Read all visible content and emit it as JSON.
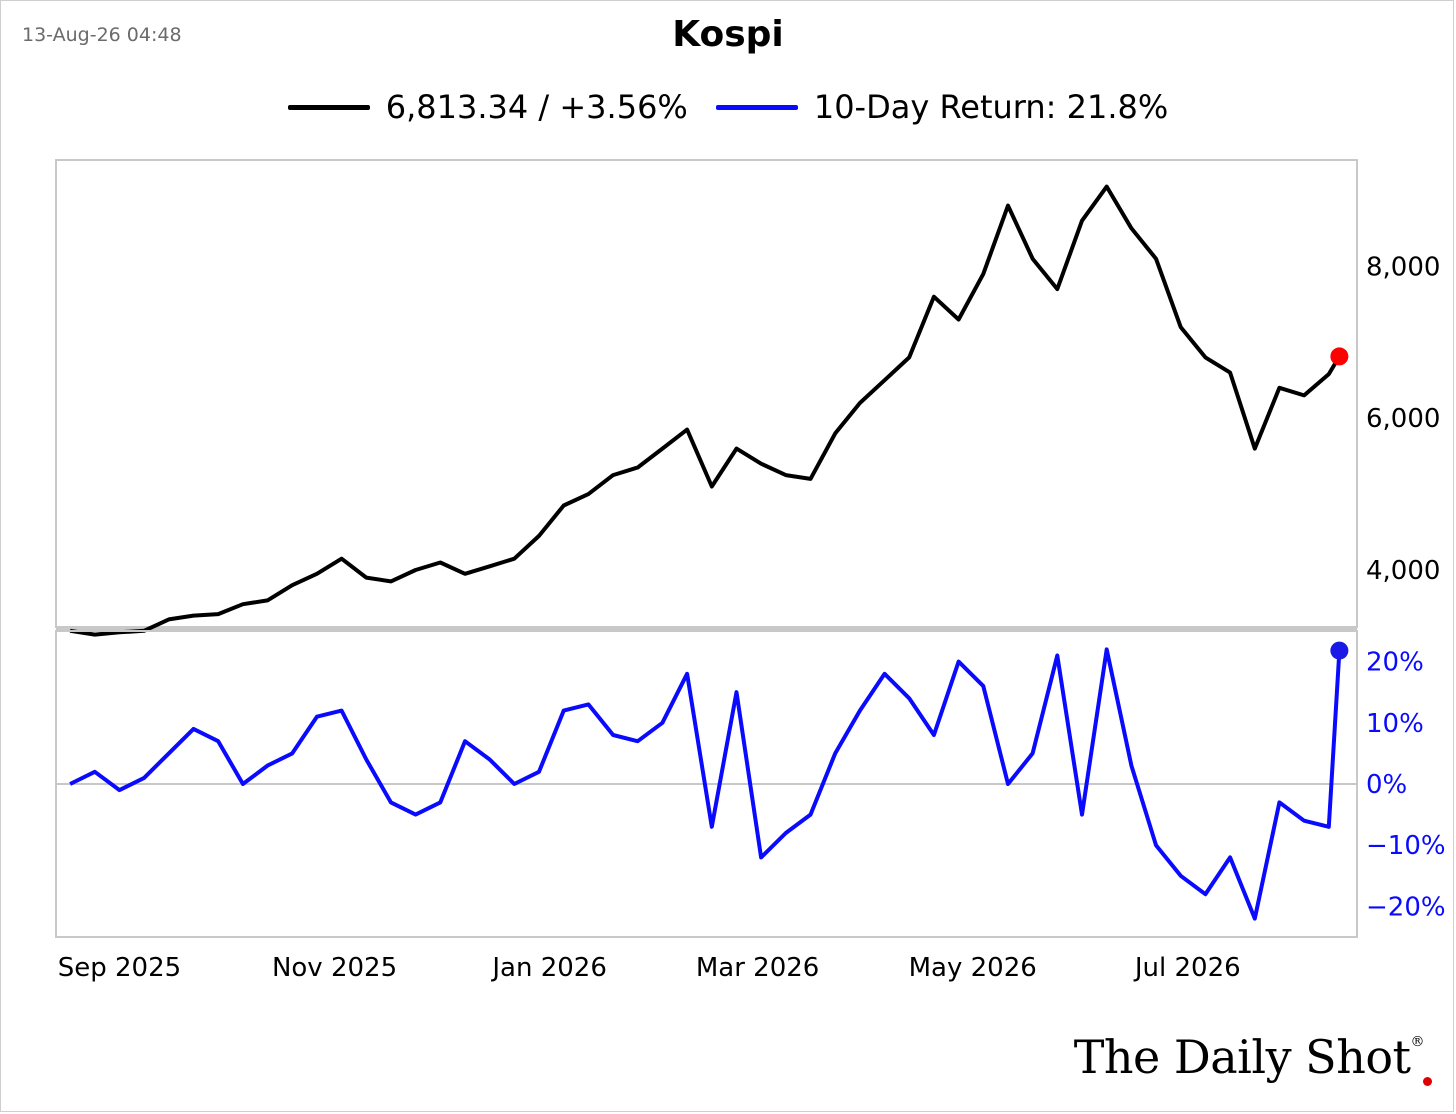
{
  "timestamp": "13-Aug-26 04:48",
  "title": "Kospi",
  "legend": {
    "price_label": "6,813.34 / +3.56%",
    "return_label": "10-Day Return: 21.8%"
  },
  "colors": {
    "price": "#000000",
    "return": "#0a0aff",
    "last_price_dot": "#ff0000",
    "return_dot": "#1a1ae6"
  },
  "logo": {
    "text": "The Daily Shot",
    "mark": "®"
  },
  "chart_data": [
    {
      "type": "line",
      "series_name": "Kospi",
      "x_ticks": [
        "Sep 2025",
        "Nov 2025",
        "Jan 2026",
        "Mar 2026",
        "May 2026",
        "Jul 2026"
      ],
      "y_ticks": [
        "4,000",
        "6,000",
        "8,000"
      ],
      "ylim": [
        3250,
        9400
      ],
      "x": [
        "2025-08-18",
        "2025-08-25",
        "2025-09-01",
        "2025-09-08",
        "2025-09-15",
        "2025-09-22",
        "2025-09-29",
        "2025-10-06",
        "2025-10-13",
        "2025-10-20",
        "2025-10-27",
        "2025-11-03",
        "2025-11-10",
        "2025-11-17",
        "2025-11-24",
        "2025-12-01",
        "2025-12-08",
        "2025-12-15",
        "2025-12-22",
        "2025-12-29",
        "2026-01-05",
        "2026-01-12",
        "2026-01-19",
        "2026-01-26",
        "2026-02-02",
        "2026-02-09",
        "2026-02-16",
        "2026-02-23",
        "2026-03-02",
        "2026-03-09",
        "2026-03-16",
        "2026-03-23",
        "2026-03-30",
        "2026-04-06",
        "2026-04-13",
        "2026-04-20",
        "2026-04-27",
        "2026-05-04",
        "2026-05-11",
        "2026-05-18",
        "2026-05-25",
        "2026-06-01",
        "2026-06-08",
        "2026-06-15",
        "2026-06-22",
        "2026-06-29",
        "2026-07-06",
        "2026-07-13",
        "2026-07-20",
        "2026-07-27",
        "2026-08-03",
        "2026-08-10",
        "2026-08-13"
      ],
      "values": [
        3200,
        3150,
        3180,
        3200,
        3350,
        3400,
        3420,
        3550,
        3600,
        3800,
        3950,
        4150,
        3900,
        3850,
        4000,
        4100,
        3950,
        4050,
        4150,
        4450,
        4850,
        5000,
        5250,
        5350,
        5600,
        5850,
        5100,
        5600,
        5400,
        5250,
        5200,
        5800,
        6200,
        6500,
        6800,
        7600,
        7300,
        7900,
        8800,
        8100,
        7700,
        8600,
        9050,
        8500,
        8100,
        7200,
        6800,
        6600,
        5600,
        6400,
        6300,
        6580,
        6813.34
      ],
      "last_value_label": "6,813.34"
    },
    {
      "type": "line",
      "series_name": "10-Day Return",
      "y_ticks": [
        "20%",
        "10%",
        "0%",
        "−10%",
        "−20%"
      ],
      "ylim": [
        -25,
        25
      ],
      "x": [
        "2025-08-18",
        "2025-08-25",
        "2025-09-01",
        "2025-09-08",
        "2025-09-15",
        "2025-09-22",
        "2025-09-29",
        "2025-10-06",
        "2025-10-13",
        "2025-10-20",
        "2025-10-27",
        "2025-11-03",
        "2025-11-10",
        "2025-11-17",
        "2025-11-24",
        "2025-12-01",
        "2025-12-08",
        "2025-12-15",
        "2025-12-22",
        "2025-12-29",
        "2026-01-05",
        "2026-01-12",
        "2026-01-19",
        "2026-01-26",
        "2026-02-02",
        "2026-02-09",
        "2026-02-16",
        "2026-02-23",
        "2026-03-02",
        "2026-03-09",
        "2026-03-16",
        "2026-03-23",
        "2026-03-30",
        "2026-04-06",
        "2026-04-13",
        "2026-04-20",
        "2026-04-27",
        "2026-05-04",
        "2026-05-11",
        "2026-05-18",
        "2026-05-25",
        "2026-06-01",
        "2026-06-08",
        "2026-06-15",
        "2026-06-22",
        "2026-06-29",
        "2026-07-06",
        "2026-07-13",
        "2026-07-20",
        "2026-07-27",
        "2026-08-03",
        "2026-08-10",
        "2026-08-13"
      ],
      "values": [
        0,
        2,
        -1,
        1,
        5,
        9,
        7,
        0,
        3,
        5,
        11,
        12,
        4,
        -3,
        -5,
        -3,
        7,
        4,
        0,
        2,
        12,
        13,
        8,
        7,
        10,
        18,
        -7,
        15,
        -12,
        -8,
        -5,
        5,
        12,
        18,
        14,
        8,
        20,
        16,
        0,
        5,
        21,
        -5,
        22,
        3,
        -10,
        -15,
        -18,
        -12,
        -22,
        -3,
        -6,
        -7,
        21.8
      ],
      "last_value_label": "21.8%"
    }
  ]
}
